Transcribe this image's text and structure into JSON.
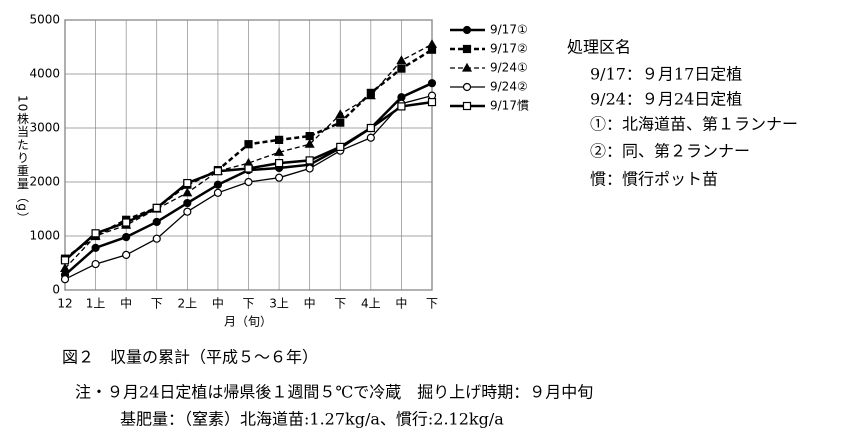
{
  "chart_data": {
    "type": "line",
    "y_label": "10株当たり重量（g）",
    "x_label": "月（旬）",
    "categories": [
      "12",
      "1上",
      "中",
      "下",
      "2上",
      "中",
      "下",
      "3上",
      "中",
      "下",
      "4上",
      "中",
      "下"
    ],
    "ylim": [
      0,
      5000
    ],
    "yticks": [
      0,
      1000,
      2000,
      3000,
      4000,
      5000
    ],
    "grid": true,
    "series": [
      {
        "name": "9/17①",
        "color": "#000000",
        "marker": "circle-filled",
        "dashed": false,
        "bold": true,
        "values": [
          280,
          780,
          980,
          1260,
          1610,
          1950,
          2220,
          2260,
          2320,
          2630,
          3000,
          3570,
          3830
        ]
      },
      {
        "name": "9/17②",
        "color": "#000000",
        "marker": "square-filled",
        "dashed": true,
        "bold": true,
        "values": [
          580,
          1000,
          1300,
          1520,
          1950,
          2220,
          2700,
          2780,
          2850,
          3100,
          3650,
          4100,
          4450
        ]
      },
      {
        "name": "9/24①",
        "color": "#000000",
        "marker": "triangle-filled",
        "dashed": true,
        "bold": false,
        "values": [
          400,
          1000,
          1200,
          1500,
          1800,
          2200,
          2350,
          2550,
          2700,
          3250,
          3600,
          4250,
          4550
        ]
      },
      {
        "name": "9/24②",
        "color": "#000000",
        "marker": "circle-open",
        "dashed": false,
        "bold": false,
        "values": [
          200,
          480,
          650,
          950,
          1450,
          1800,
          2000,
          2080,
          2250,
          2580,
          2820,
          3450,
          3600
        ]
      },
      {
        "name": "9/17慣",
        "color": "#000000",
        "marker": "square-open",
        "dashed": false,
        "bold": true,
        "values": [
          550,
          1050,
          1250,
          1520,
          1980,
          2200,
          2250,
          2350,
          2400,
          2650,
          3000,
          3400,
          3480
        ]
      }
    ]
  },
  "notes": {
    "title": "処理区名",
    "lines": [
      "9/17：９月17日定植",
      "9/24：９月24日定植",
      "①：北海道苗、第１ランナー",
      "②：同、第２ランナー",
      "慣：慣行ポット苗"
    ]
  },
  "caption": [
    "図２　収量の累計（平成５～６年）",
    "注・９月24日定植は帰県後１週間５℃で冷蔵　掘り上げ時期：９月中旬",
    "基肥量：（窒素）北海道苗:1.27kg/a、慣行:2.12kg/a"
  ]
}
